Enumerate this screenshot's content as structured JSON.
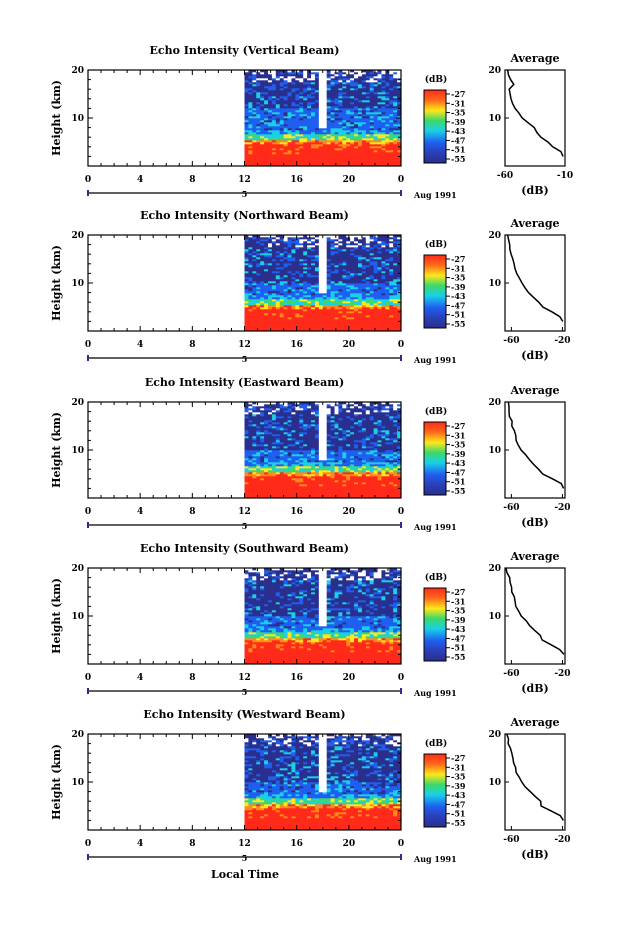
{
  "figure": {
    "xlabel": "Local Time",
    "date_label": "Aug 1991",
    "day_marker": "5",
    "colorbar_unit": "(dB)",
    "colorbar_ticks": [
      "-27",
      "-31",
      "-35",
      "-39",
      "-43",
      "-47",
      "-51",
      "-55"
    ],
    "avg_title": "Average",
    "avg_xlabel": "(dB)",
    "height_label": "Height (km)",
    "height_ticks": [
      "20",
      "10"
    ],
    "time_ticks": [
      "0",
      "4",
      "8",
      "12",
      "16",
      "20",
      "0"
    ],
    "colors": {
      "red": "#ff2a1a",
      "orange": "#ff8a1a",
      "yellow": "#ffe81a",
      "green": "#3cd96a",
      "cyan": "#19d0e8",
      "blue": "#1f5ff0",
      "navy": "#2a2f8c"
    }
  },
  "chart_data": [
    {
      "type": "heatmap",
      "title": "Echo Intensity (Vertical Beam)",
      "xlim": [
        0,
        24
      ],
      "ylim": [
        0,
        20
      ],
      "data_start_hour": 12,
      "avg_xticks": [
        "-60",
        "-10"
      ],
      "avg_xlim": [
        -60,
        -10
      ],
      "average_profile": {
        "height_km": [
          2,
          3,
          4,
          5,
          6,
          7,
          8,
          9,
          10,
          11,
          12,
          13,
          14,
          15,
          16,
          17,
          18,
          19,
          20
        ],
        "db": [
          -12,
          -14,
          -20,
          -24,
          -30,
          -33,
          -36,
          -40,
          -45,
          -49,
          -52,
          -54,
          -55,
          -55,
          -56,
          -53,
          -55,
          -57,
          -58
        ]
      }
    },
    {
      "type": "heatmap",
      "title": "Echo Intensity (Northward Beam)",
      "xlim": [
        0,
        24
      ],
      "ylim": [
        0,
        20
      ],
      "data_start_hour": 12,
      "avg_xticks": [
        "-60",
        "-20"
      ],
      "avg_xlim": [
        -65,
        -18
      ],
      "average_profile": {
        "height_km": [
          2,
          3,
          4,
          5,
          6,
          7,
          8,
          9,
          10,
          11,
          12,
          13,
          14,
          15,
          16,
          17,
          18,
          19,
          20
        ],
        "db": [
          -19,
          -22,
          -28,
          -36,
          -38,
          -42,
          -46,
          -49,
          -52,
          -54,
          -56,
          -57,
          -58,
          -59,
          -60,
          -61,
          -61,
          -62,
          -63
        ]
      }
    },
    {
      "type": "heatmap",
      "title": "Echo Intensity (Eastward Beam)",
      "xlim": [
        0,
        24
      ],
      "ylim": [
        0,
        20
      ],
      "data_start_hour": 12,
      "avg_xticks": [
        "-60",
        "-20"
      ],
      "avg_xlim": [
        -65,
        -18
      ],
      "average_profile": {
        "height_km": [
          2,
          3,
          4,
          5,
          6,
          7,
          8,
          9,
          10,
          11,
          12,
          13,
          14,
          15,
          16,
          17,
          18,
          19,
          20
        ],
        "db": [
          -19,
          -21,
          -28,
          -35,
          -38,
          -42,
          -46,
          -49,
          -52,
          -54,
          -56,
          -57,
          -58,
          -59,
          -60,
          -61,
          -62,
          -62,
          -63
        ]
      }
    },
    {
      "type": "heatmap",
      "title": "Echo Intensity (Southward Beam)",
      "xlim": [
        0,
        24
      ],
      "ylim": [
        0,
        20
      ],
      "data_start_hour": 12,
      "avg_xticks": [
        "-60",
        "-20"
      ],
      "avg_xlim": [
        -65,
        -18
      ],
      "average_profile": {
        "height_km": [
          2,
          3,
          4,
          5,
          6,
          7,
          8,
          9,
          10,
          11,
          12,
          13,
          14,
          15,
          16,
          17,
          18,
          19,
          20
        ],
        "db": [
          -18,
          -22,
          -29,
          -36,
          -38,
          -42,
          -46,
          -49,
          -52,
          -54,
          -56,
          -57,
          -58,
          -59,
          -60,
          -61,
          -62,
          -63,
          -64
        ]
      }
    },
    {
      "type": "heatmap",
      "title": "Echo Intensity (Westward Beam)",
      "xlim": [
        0,
        24
      ],
      "ylim": [
        0,
        20
      ],
      "data_start_hour": 12,
      "avg_xticks": [
        "-60",
        "-20"
      ],
      "avg_xlim": [
        -65,
        -18
      ],
      "average_profile": {
        "height_km": [
          2,
          3,
          4,
          5,
          6,
          7,
          8,
          9,
          10,
          11,
          12,
          13,
          14,
          15,
          16,
          17,
          18,
          19,
          20
        ],
        "db": [
          -19,
          -22,
          -29,
          -36,
          -37,
          -42,
          -46,
          -49,
          -52,
          -54,
          -56,
          -57,
          -58,
          -59,
          -60,
          -61,
          -62,
          -63,
          -64
        ]
      }
    }
  ]
}
